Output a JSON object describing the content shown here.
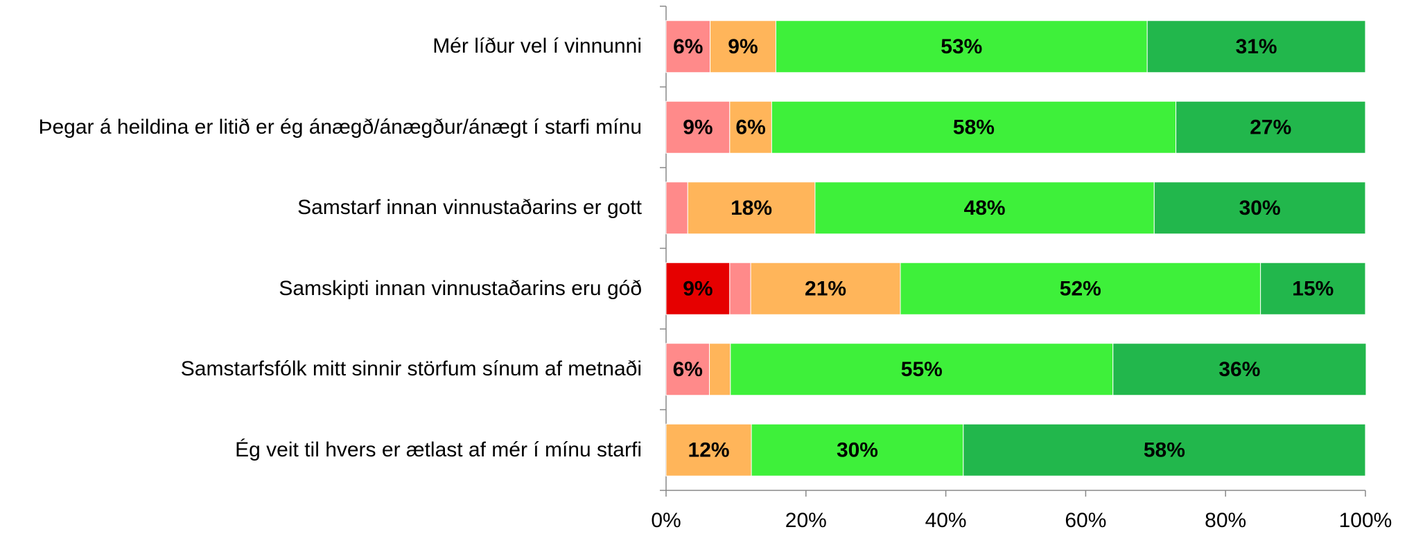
{
  "chart_data": {
    "type": "stacked-barh",
    "categories": [
      "Mér líður vel í vinnunni",
      "Þegar á heildina er litið er ég ánægð/ánægður/ánægt í starfi mínu",
      "Samstarf innan vinnustaðarins er gott",
      "Samskipti innan vinnustaðarins eru góð",
      "Samstarfsfólk mitt sinnir störfum sínum af metnaði",
      "Ég veit til hvers er ætlast af mér í mínu starfi"
    ],
    "series": [
      {
        "color": "#e60000",
        "values": [
          0,
          0,
          0,
          9.1,
          0,
          0
        ],
        "value_labels": [
          null,
          null,
          null,
          "9%",
          null,
          null
        ]
      },
      {
        "color": "#ff8a8a",
        "values": [
          6.3,
          9.1,
          3.1,
          3.0,
          6.2,
          0
        ],
        "value_labels": [
          "6%",
          "9%",
          null,
          null,
          "6%",
          null
        ]
      },
      {
        "color": "#ffb55a",
        "values": [
          9.4,
          6.0,
          18.2,
          21.4,
          3.0,
          12.2
        ],
        "value_labels": [
          "9%",
          "6%",
          "18%",
          "21%",
          null,
          "12%"
        ]
      },
      {
        "color": "#3ef03a",
        "values": [
          53.1,
          57.8,
          48.5,
          51.5,
          54.7,
          30.3
        ],
        "value_labels": [
          "53%",
          "58%",
          "48%",
          "52%",
          "55%",
          "30%"
        ]
      },
      {
        "color": "#22b74c",
        "values": [
          31.2,
          27.1,
          30.2,
          15.0,
          36.2,
          57.5
        ],
        "value_labels": [
          "31%",
          "27%",
          "30%",
          "15%",
          "36%",
          "58%"
        ]
      }
    ],
    "xlim": [
      0,
      100
    ],
    "xticks": [
      {
        "value": 0,
        "label": "0%"
      },
      {
        "value": 20,
        "label": "20%"
      },
      {
        "value": 40,
        "label": "40%"
      },
      {
        "value": 60,
        "label": "60%"
      },
      {
        "value": 80,
        "label": "80%"
      },
      {
        "value": 100,
        "label": "100%"
      }
    ]
  }
}
